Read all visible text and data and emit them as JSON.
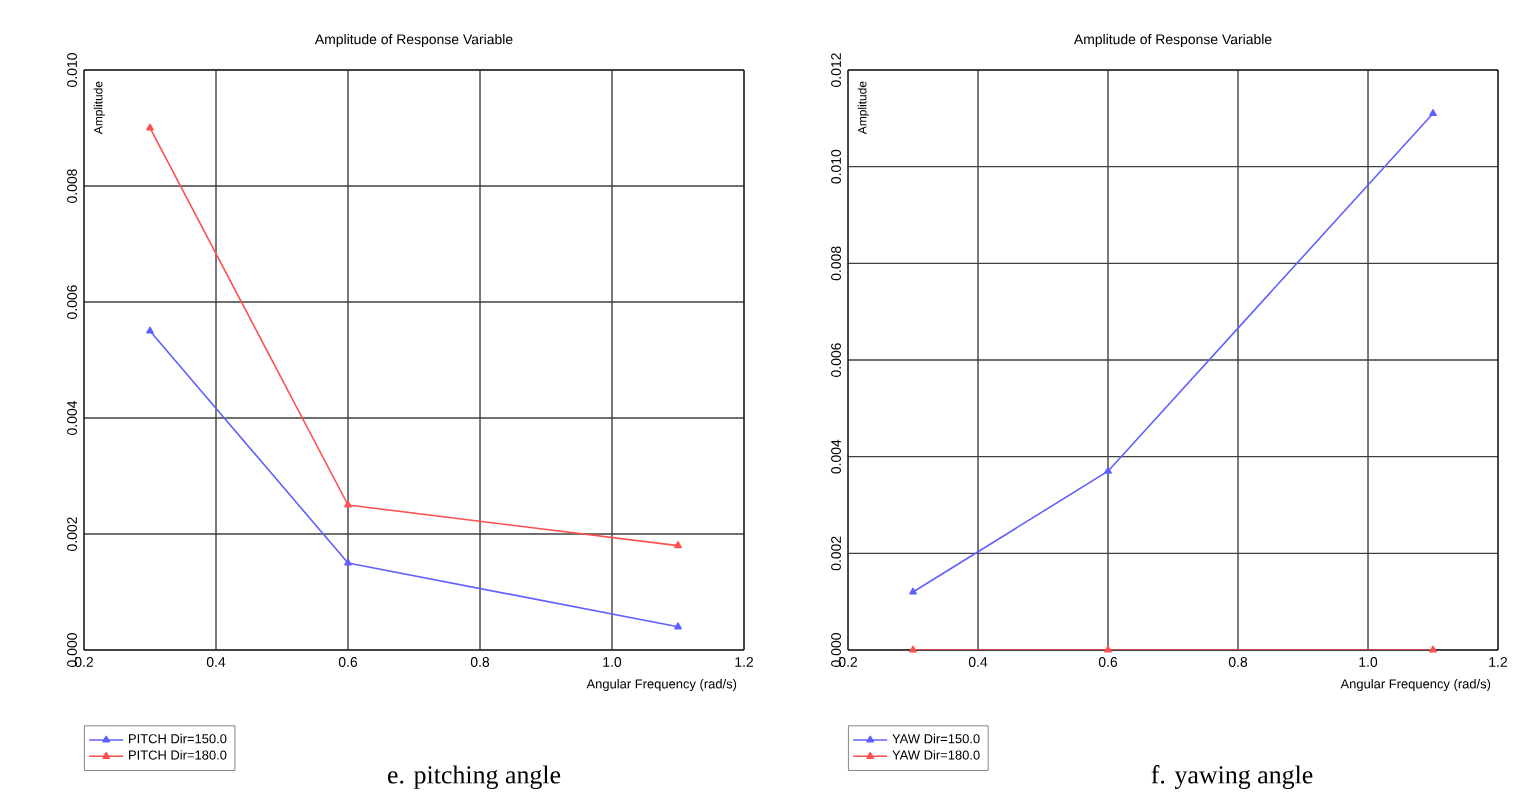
{
  "chart_data": [
    {
      "type": "line",
      "title": "Amplitude of Response Variable",
      "xlabel": "Angular Frequency (rad/s)",
      "ylabel": "Amplitude",
      "x": [
        0.3,
        0.6,
        1.1
      ],
      "series": [
        {
          "name": "PITCH Dir=150.0",
          "color": "#6060ff",
          "values": [
            0.0055,
            0.0015,
            0.0004
          ]
        },
        {
          "name": "PITCH Dir=180.0",
          "color": "#ff5050",
          "values": [
            0.009,
            0.0025,
            0.0018
          ]
        }
      ],
      "xlim": [
        0.2,
        1.2
      ],
      "xticks": [
        {
          "value": 0.2,
          "label": "0.2"
        },
        {
          "value": 0.4,
          "label": "0.4"
        },
        {
          "value": 0.6,
          "label": "0.6"
        },
        {
          "value": 0.8,
          "label": "0.8"
        },
        {
          "value": 1.0,
          "label": "1.0"
        },
        {
          "value": 1.2,
          "label": "1.2"
        }
      ],
      "ylim": [
        0,
        0.01
      ],
      "yticks": [
        {
          "value": 0,
          "label": "0.000"
        },
        {
          "value": 0.002,
          "label": "0.002"
        },
        {
          "value": 0.004,
          "label": "0.004"
        },
        {
          "value": 0.006,
          "label": "0.006"
        },
        {
          "value": 0.008,
          "label": "0.008"
        },
        {
          "value": 0.01,
          "label": "0.010"
        }
      ],
      "grid": true,
      "legend": "bottom left",
      "marker": "triangle",
      "annotations": [
        "e. pitching angle"
      ]
    },
    {
      "type": "line",
      "title": "Amplitude of Response Variable",
      "xlabel": "Angular Frequency (rad/s)",
      "ylabel": "Amplitude",
      "x": [
        0.3,
        0.6,
        1.1
      ],
      "series": [
        {
          "name": "YAW Dir=150.0",
          "color": "#6060ff",
          "values": [
            0.0012,
            0.0037,
            0.0111
          ]
        },
        {
          "name": "YAW Dir=180.0",
          "color": "#ff5050",
          "values": [
            0.0,
            0.0,
            0.0
          ]
        }
      ],
      "xlim": [
        0.2,
        1.2
      ],
      "xticks": [
        {
          "value": 0.2,
          "label": "0.2"
        },
        {
          "value": 0.4,
          "label": "0.4"
        },
        {
          "value": 0.6,
          "label": "0.6"
        },
        {
          "value": 0.8,
          "label": "0.8"
        },
        {
          "value": 1.0,
          "label": "1.0"
        },
        {
          "value": 1.2,
          "label": "1.2"
        }
      ],
      "ylim": [
        0,
        0.012
      ],
      "yticks": [
        {
          "value": 0,
          "label": "0.000"
        },
        {
          "value": 0.002,
          "label": "0.002"
        },
        {
          "value": 0.004,
          "label": "0.004"
        },
        {
          "value": 0.006,
          "label": "0.006"
        },
        {
          "value": 0.008,
          "label": "0.008"
        },
        {
          "value": 0.01,
          "label": "0.010"
        },
        {
          "value": 0.012,
          "label": "0.012"
        }
      ],
      "grid": true,
      "legend": "bottom left",
      "marker": "triangle",
      "annotations": [
        "f. yawing angle"
      ]
    }
  ]
}
